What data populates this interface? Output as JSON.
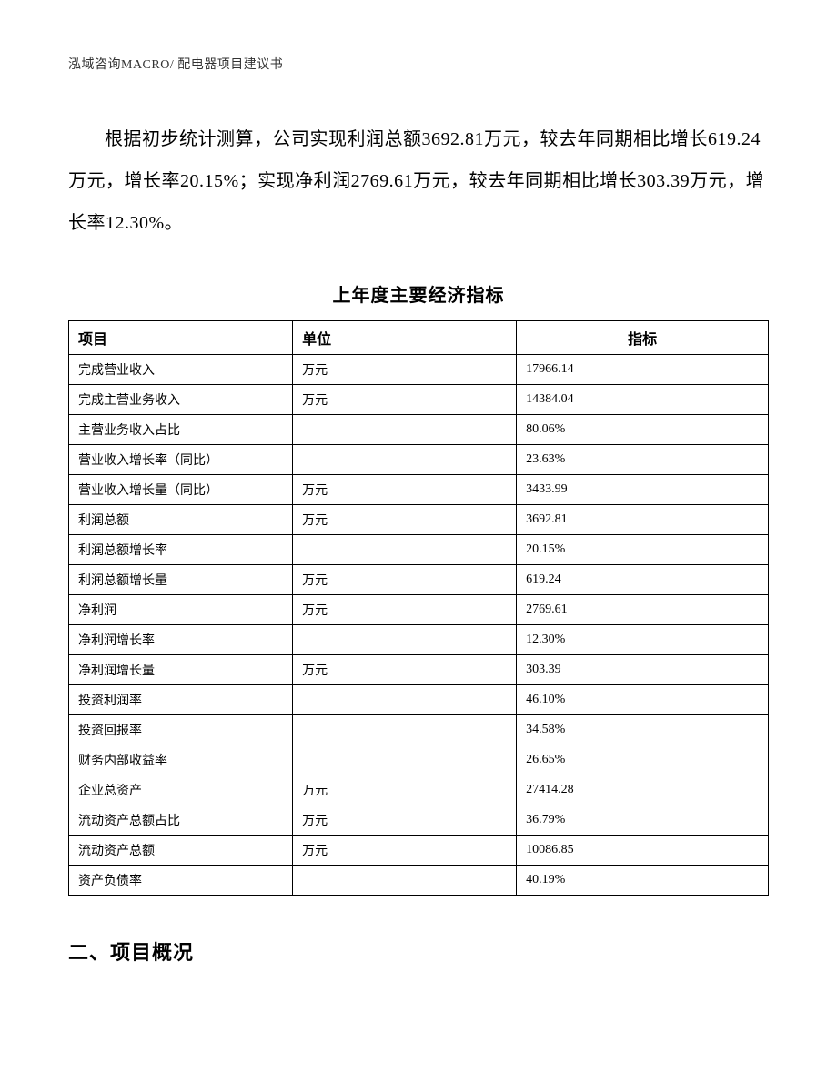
{
  "header": {
    "text": "泓域咨询MACRO/ 配电器项目建议书"
  },
  "body_paragraph": "根据初步统计测算，公司实现利润总额3692.81万元，较去年同期相比增长619.24万元，增长率20.15%；实现净利润2769.61万元，较去年同期相比增长303.39万元，增长率12.30%。",
  "table": {
    "title": "上年度主要经济指标",
    "columns": [
      "项目",
      "单位",
      "指标"
    ],
    "rows": [
      {
        "c1": "完成营业收入",
        "c2": "万元",
        "c3": "17966.14"
      },
      {
        "c1": "完成主营业务收入",
        "c2": "万元",
        "c3": "14384.04"
      },
      {
        "c1": "主营业务收入占比",
        "c2": "",
        "c3": "80.06%"
      },
      {
        "c1": "营业收入增长率（同比）",
        "c2": "",
        "c3": "23.63%"
      },
      {
        "c1": "营业收入增长量（同比）",
        "c2": "万元",
        "c3": "3433.99"
      },
      {
        "c1": "利润总额",
        "c2": "万元",
        "c3": "3692.81"
      },
      {
        "c1": "利润总额增长率",
        "c2": "",
        "c3": "20.15%"
      },
      {
        "c1": "利润总额增长量",
        "c2": "万元",
        "c3": "619.24"
      },
      {
        "c1": "净利润",
        "c2": "万元",
        "c3": "2769.61"
      },
      {
        "c1": "净利润增长率",
        "c2": "",
        "c3": "12.30%"
      },
      {
        "c1": "净利润增长量",
        "c2": "万元",
        "c3": "303.39"
      },
      {
        "c1": "投资利润率",
        "c2": "",
        "c3": "46.10%"
      },
      {
        "c1": "投资回报率",
        "c2": "",
        "c3": "34.58%"
      },
      {
        "c1": "财务内部收益率",
        "c2": "",
        "c3": "26.65%"
      },
      {
        "c1": "企业总资产",
        "c2": "万元",
        "c3": "27414.28"
      },
      {
        "c1": "流动资产总额占比",
        "c2": "万元",
        "c3": "36.79%"
      },
      {
        "c1": "流动资产总额",
        "c2": "万元",
        "c3": "10086.85"
      },
      {
        "c1": "资产负债率",
        "c2": "",
        "c3": "40.19%"
      }
    ]
  },
  "section_title": "二、项目概况"
}
